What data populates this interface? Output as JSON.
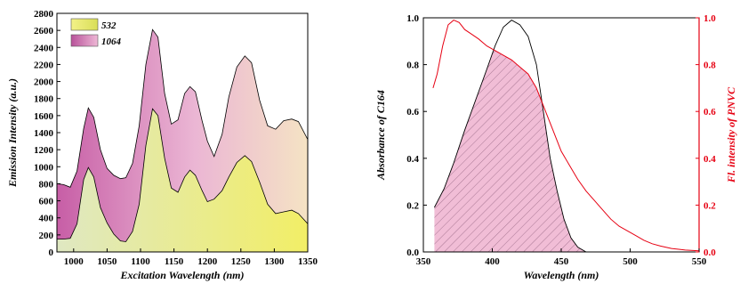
{
  "chart_data": [
    {
      "type": "area",
      "xlabel": "Excitation Wavelength (nm)",
      "ylabel": "Emission Intensity (a.u.)",
      "xlim": [
        975,
        1350
      ],
      "ylim": [
        0,
        2800
      ],
      "x_ticks": [
        1000,
        1050,
        1100,
        1150,
        1200,
        1250,
        1300,
        1350
      ],
      "y_ticks": [
        0,
        200,
        400,
        600,
        800,
        1000,
        1200,
        1400,
        1600,
        1800,
        2000,
        2200,
        2400,
        2600,
        2800
      ],
      "legend_position": "top-left",
      "series": [
        {
          "name": "532",
          "color": "#e9ea7e",
          "points": [
            [
              975,
              150
            ],
            [
              985,
              150
            ],
            [
              995,
              160
            ],
            [
              1005,
              330
            ],
            [
              1015,
              850
            ],
            [
              1022,
              990
            ],
            [
              1030,
              880
            ],
            [
              1040,
              520
            ],
            [
              1050,
              340
            ],
            [
              1060,
              210
            ],
            [
              1070,
              130
            ],
            [
              1078,
              120
            ],
            [
              1088,
              240
            ],
            [
              1098,
              560
            ],
            [
              1108,
              1250
            ],
            [
              1118,
              1680
            ],
            [
              1126,
              1600
            ],
            [
              1136,
              1100
            ],
            [
              1146,
              750
            ],
            [
              1156,
              700
            ],
            [
              1166,
              880
            ],
            [
              1174,
              960
            ],
            [
              1182,
              900
            ],
            [
              1192,
              720
            ],
            [
              1200,
              590
            ],
            [
              1210,
              620
            ],
            [
              1222,
              720
            ],
            [
              1232,
              880
            ],
            [
              1244,
              1050
            ],
            [
              1256,
              1130
            ],
            [
              1266,
              1060
            ],
            [
              1278,
              820
            ],
            [
              1290,
              560
            ],
            [
              1302,
              450
            ],
            [
              1314,
              470
            ],
            [
              1326,
              490
            ],
            [
              1336,
              450
            ],
            [
              1350,
              330
            ]
          ]
        },
        {
          "name": "1064",
          "color": "#cc6fac",
          "points": [
            [
              975,
              800
            ],
            [
              985,
              790
            ],
            [
              995,
              760
            ],
            [
              1005,
              950
            ],
            [
              1015,
              1450
            ],
            [
              1022,
              1690
            ],
            [
              1030,
              1580
            ],
            [
              1040,
              1200
            ],
            [
              1050,
              980
            ],
            [
              1060,
              900
            ],
            [
              1070,
              860
            ],
            [
              1078,
              870
            ],
            [
              1088,
              1040
            ],
            [
              1098,
              1480
            ],
            [
              1108,
              2200
            ],
            [
              1118,
              2610
            ],
            [
              1126,
              2520
            ],
            [
              1136,
              1860
            ],
            [
              1146,
              1500
            ],
            [
              1156,
              1550
            ],
            [
              1166,
              1860
            ],
            [
              1174,
              1940
            ],
            [
              1182,
              1880
            ],
            [
              1192,
              1540
            ],
            [
              1200,
              1300
            ],
            [
              1210,
              1120
            ],
            [
              1222,
              1380
            ],
            [
              1232,
              1820
            ],
            [
              1244,
              2170
            ],
            [
              1256,
              2300
            ],
            [
              1266,
              2220
            ],
            [
              1278,
              1780
            ],
            [
              1290,
              1480
            ],
            [
              1302,
              1440
            ],
            [
              1314,
              1540
            ],
            [
              1326,
              1560
            ],
            [
              1336,
              1530
            ],
            [
              1350,
              1320
            ]
          ]
        }
      ]
    },
    {
      "type": "line",
      "xlabel": "Wavelength (nm)",
      "ylabel": "Absorbance of C164",
      "y2label": "Fl. intensity of PNVC",
      "xlim": [
        350,
        550
      ],
      "ylim": [
        0,
        1.0
      ],
      "y2lim": [
        0,
        1.0
      ],
      "x_ticks": [
        350,
        400,
        450,
        500,
        550
      ],
      "y_ticks": [
        "0.0",
        "0.2",
        "0.4",
        "0.6",
        "0.8",
        "1.0"
      ],
      "y2_ticks": [
        "0.0",
        "0.2",
        "0.4",
        "0.6",
        "0.8",
        "1.0"
      ],
      "series": [
        {
          "name": "Absorbance of C164",
          "color": "#000000",
          "axis": "left",
          "points": [
            [
              358,
              0.19
            ],
            [
              365,
              0.27
            ],
            [
              372,
              0.38
            ],
            [
              380,
              0.52
            ],
            [
              388,
              0.65
            ],
            [
              396,
              0.78
            ],
            [
              402,
              0.88
            ],
            [
              408,
              0.96
            ],
            [
              414,
              0.99
            ],
            [
              420,
              0.97
            ],
            [
              426,
              0.92
            ],
            [
              432,
              0.8
            ],
            [
              437,
              0.6
            ],
            [
              442,
              0.4
            ],
            [
              447,
              0.26
            ],
            [
              452,
              0.14
            ],
            [
              457,
              0.06
            ],
            [
              462,
              0.02
            ],
            [
              468,
              0.0
            ]
          ]
        },
        {
          "name": "Fl. intensity of PNVC",
          "color": "#e60012",
          "axis": "right",
          "points": [
            [
              357,
              0.7
            ],
            [
              360,
              0.76
            ],
            [
              364,
              0.88
            ],
            [
              368,
              0.97
            ],
            [
              372,
              0.99
            ],
            [
              376,
              0.98
            ],
            [
              380,
              0.95
            ],
            [
              385,
              0.93
            ],
            [
              390,
              0.91
            ],
            [
              396,
              0.88
            ],
            [
              402,
              0.86
            ],
            [
              408,
              0.84
            ],
            [
              414,
              0.82
            ],
            [
              420,
              0.79
            ],
            [
              426,
              0.76
            ],
            [
              432,
              0.7
            ],
            [
              438,
              0.61
            ],
            [
              444,
              0.52
            ],
            [
              450,
              0.43
            ],
            [
              456,
              0.37
            ],
            [
              462,
              0.31
            ],
            [
              468,
              0.26
            ],
            [
              474,
              0.22
            ],
            [
              480,
              0.18
            ],
            [
              486,
              0.14
            ],
            [
              492,
              0.11
            ],
            [
              498,
              0.09
            ],
            [
              504,
              0.07
            ],
            [
              510,
              0.05
            ],
            [
              516,
              0.035
            ],
            [
              522,
              0.025
            ],
            [
              530,
              0.015
            ],
            [
              540,
              0.008
            ],
            [
              550,
              0.005
            ]
          ]
        }
      ]
    }
  ]
}
